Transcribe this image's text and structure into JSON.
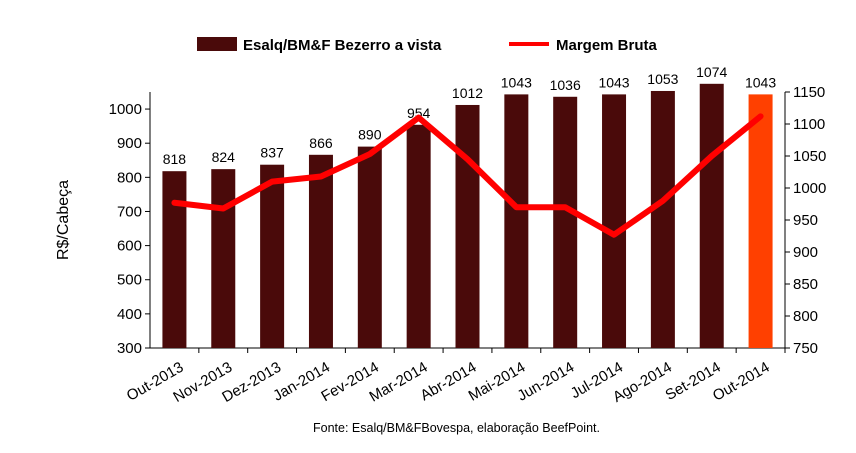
{
  "chart_data": {
    "type": "bar",
    "categories": [
      "Out-2013",
      "Nov-2013",
      "Dez-2013",
      "Jan-2014",
      "Fev-2014",
      "Mar-2014",
      "Abr-2014",
      "Mai-2014",
      "Jun-2014",
      "Jul-2014",
      "Ago-2014",
      "Set-2014",
      "Out-2014"
    ],
    "series": [
      {
        "name": "Esalq/BM&F Bezerro a vista",
        "type": "bar",
        "axis": "left",
        "color": "#4a0a0a",
        "highlight_last_color": "#ff4000",
        "values": [
          818,
          824,
          837,
          866,
          890,
          954,
          1012,
          1043,
          1036,
          1043,
          1053,
          1074,
          1043
        ]
      },
      {
        "name": "Margem Bruta",
        "type": "line",
        "axis": "right",
        "color": "#ff0000",
        "values": [
          977,
          968,
          1010,
          1018,
          1053,
          1110,
          1045,
          970,
          970,
          927,
          980,
          1050,
          1112
        ]
      }
    ],
    "ylabel": "R$/Cabeça",
    "ylim": [
      300,
      1050
    ],
    "y_ticks": [
      "300",
      "400",
      "500",
      "600",
      "700",
      "800",
      "900",
      "1000"
    ],
    "y2lim": [
      750,
      1150
    ],
    "y2_ticks": [
      "750",
      "800",
      "850",
      "900",
      "950",
      "1000",
      "1050",
      "1100",
      "1150"
    ],
    "legend_position": "top",
    "grid": false,
    "source": "Fonte: Esalq/BM&FBovespa, elaboração BeefPoint."
  }
}
